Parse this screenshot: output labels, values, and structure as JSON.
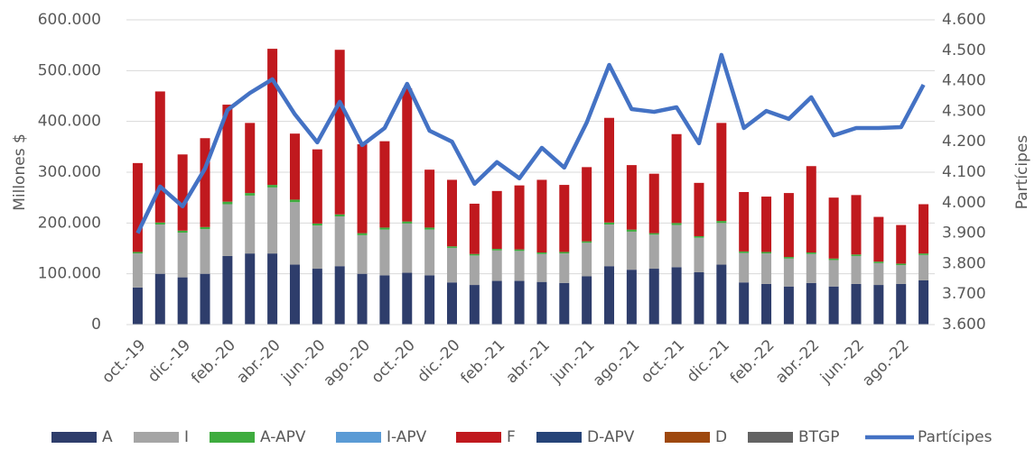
{
  "chart_data": {
    "type": "bar",
    "stacked": true,
    "grid": true,
    "legend": "bottom",
    "ylabel": "Millones $",
    "y2label": "Partícipes",
    "categories": [
      "oct.-19",
      null,
      "dic.-19",
      null,
      "feb.-20",
      null,
      "abr.-20",
      null,
      "jun.-20",
      null,
      "ago.-20",
      null,
      "oct.-20",
      null,
      "dic.-20",
      null,
      "feb.-21",
      null,
      "abr.-21",
      null,
      "jun.-21",
      null,
      "ago.-21",
      null,
      "oct.-21",
      null,
      "dic.-21",
      null,
      "feb.-22",
      null,
      "abr.-22",
      null,
      "jun.-22",
      null,
      "ago.-22",
      null
    ],
    "ylim": [
      0,
      600000
    ],
    "yticks": [
      0,
      {
        "value": 100000,
        "label": "100.000"
      },
      {
        "value": 200000,
        "label": "200.000"
      },
      {
        "value": 300000,
        "label": "300.000"
      },
      {
        "value": 400000,
        "label": "400.000"
      },
      {
        "value": 500000,
        "label": "500.000"
      },
      {
        "value": 600000,
        "label": "600.000"
      }
    ],
    "y2lim": [
      3600,
      4600
    ],
    "y2ticks": [
      {
        "value": 3600,
        "label": "3.600"
      },
      {
        "value": 3700,
        "label": "3.700"
      },
      {
        "value": 3800,
        "label": "3.800"
      },
      {
        "value": 3900,
        "label": "3.900"
      },
      {
        "value": 4000,
        "label": "4.000"
      },
      {
        "value": 4100,
        "label": "4.100"
      },
      {
        "value": 4200,
        "label": "4.200"
      },
      {
        "value": 4300,
        "label": "4.300"
      },
      {
        "value": 4400,
        "label": "4.400"
      },
      {
        "value": 4500,
        "label": "4.500"
      },
      {
        "value": 4600,
        "label": "4.600"
      }
    ],
    "series": [
      {
        "name": "A",
        "color": "#2e3d6b",
        "values": [
          73000,
          100000,
          93000,
          100000,
          135000,
          140000,
          140000,
          118000,
          110000,
          115000,
          100000,
          97000,
          102000,
          97000,
          83000,
          78000,
          86000,
          86000,
          84000,
          82000,
          95000,
          115000,
          108000,
          110000,
          113000,
          103000,
          118000,
          83000,
          80000,
          75000,
          82000,
          75000,
          80000,
          78000,
          80000,
          87000
        ]
      },
      {
        "name": "I",
        "color": "#a5a5a5",
        "values": [
          67000,
          97000,
          88000,
          88000,
          102000,
          114000,
          130000,
          123000,
          85000,
          98000,
          76000,
          90000,
          97000,
          90000,
          68000,
          58000,
          60000,
          59000,
          55000,
          58000,
          66000,
          82000,
          75000,
          67000,
          83000,
          68000,
          82000,
          58000,
          60000,
          55000,
          57000,
          52000,
          55000,
          43000,
          37000,
          50000
        ]
      },
      {
        "name": "A-APV",
        "color": "#3eac3e",
        "values": [
          3000,
          4000,
          4000,
          4000,
          5000,
          5000,
          5000,
          5000,
          4000,
          4000,
          4000,
          4000,
          4000,
          4000,
          3000,
          3000,
          3000,
          3000,
          3000,
          3000,
          3000,
          4000,
          4000,
          3000,
          4000,
          3000,
          4000,
          3000,
          3000,
          3000,
          3000,
          3000,
          3000,
          3000,
          3000,
          3000
        ]
      },
      {
        "name": "I-APV",
        "color": "#5b9bd5",
        "values": [
          0,
          0,
          0,
          0,
          0,
          0,
          0,
          0,
          0,
          0,
          0,
          0,
          0,
          0,
          0,
          0,
          0,
          0,
          0,
          0,
          0,
          0,
          0,
          0,
          0,
          0,
          0,
          0,
          0,
          0,
          0,
          0,
          0,
          0,
          0,
          0
        ]
      },
      {
        "name": "F",
        "color": "#c0191e",
        "values": [
          175000,
          258000,
          150000,
          175000,
          191000,
          138000,
          268000,
          130000,
          146000,
          324000,
          175000,
          170000,
          262000,
          114000,
          131000,
          99000,
          114000,
          126000,
          143000,
          132000,
          146000,
          206000,
          127000,
          117000,
          175000,
          105000,
          193000,
          117000,
          109000,
          126000,
          170000,
          120000,
          117000,
          88000,
          76000,
          97000
        ]
      },
      {
        "name": "D-APV",
        "color": "#264478",
        "values": [
          0,
          0,
          0,
          0,
          0,
          0,
          0,
          0,
          0,
          0,
          0,
          0,
          0,
          0,
          0,
          0,
          0,
          0,
          0,
          0,
          0,
          0,
          0,
          0,
          0,
          0,
          0,
          0,
          0,
          0,
          0,
          0,
          0,
          0,
          0,
          0
        ]
      },
      {
        "name": "D",
        "color": "#9e480e",
        "values": [
          0,
          0,
          0,
          0,
          0,
          0,
          0,
          0,
          0,
          0,
          0,
          0,
          0,
          0,
          0,
          0,
          0,
          0,
          0,
          0,
          0,
          0,
          0,
          0,
          0,
          0,
          0,
          0,
          0,
          0,
          0,
          0,
          0,
          0,
          0,
          0
        ]
      },
      {
        "name": "BTGP",
        "color": "#636363",
        "values": [
          0,
          0,
          0,
          0,
          0,
          0,
          0,
          0,
          0,
          0,
          0,
          0,
          0,
          0,
          0,
          0,
          0,
          0,
          0,
          0,
          0,
          0,
          0,
          0,
          0,
          0,
          0,
          0,
          0,
          0,
          0,
          0,
          0,
          0,
          0,
          0
        ]
      },
      {
        "name": "Partícipes",
        "color": "#4472c4",
        "type": "line",
        "axis": "y2",
        "values": [
          3900,
          4053,
          3988,
          4112,
          4304,
          4360,
          4405,
          4290,
          4198,
          4331,
          4189,
          4245,
          4390,
          4236,
          4200,
          4062,
          4133,
          4080,
          4180,
          4115,
          4263,
          4452,
          4307,
          4298,
          4313,
          4195,
          4485,
          4245,
          4301,
          4275,
          4346,
          4221,
          4245,
          4245,
          4248,
          4387
        ]
      }
    ]
  }
}
